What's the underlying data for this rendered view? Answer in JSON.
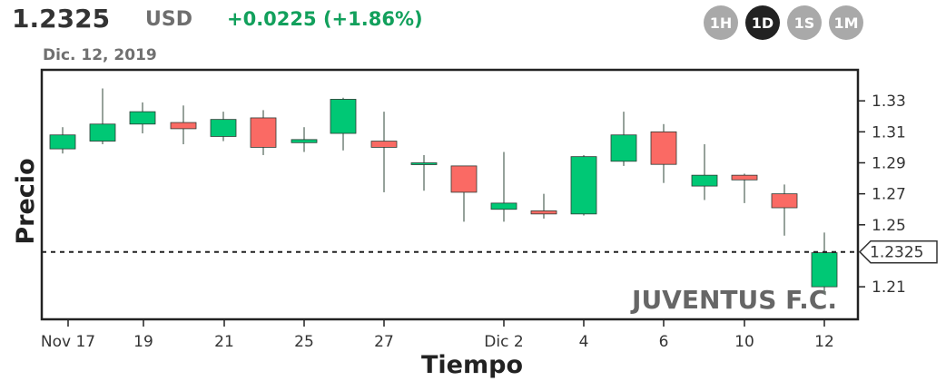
{
  "header": {
    "price": "1.2325",
    "currency": "USD",
    "change": "+0.0225 (+1.86%)",
    "change_color": "#12a05c",
    "date": "Dic. 12, 2019"
  },
  "ranges": [
    {
      "label": "1H",
      "active": false
    },
    {
      "label": "1D",
      "active": true
    },
    {
      "label": "1S",
      "active": false
    },
    {
      "label": "1M",
      "active": false
    }
  ],
  "colors": {
    "up": "#00c875",
    "down": "#fa6a64",
    "frame": "#222222"
  },
  "chart_data": {
    "type": "candlestick",
    "title": "",
    "xlabel": "Tiempo",
    "ylabel": "Precio",
    "ylim": [
      1.189,
      1.35
    ],
    "y_ticks": [
      "1.33",
      "1.31",
      "1.29",
      "1.27",
      "1.25",
      "1.21"
    ],
    "x_ticks": [
      "Nov 17",
      "19",
      "21",
      "25",
      "27",
      "Dic 2",
      "4",
      "6",
      "10",
      "12"
    ],
    "watermark": "JUVENTUS F.C.",
    "current_price": 1.2325,
    "current_price_label": "1.2325",
    "candles": [
      {
        "open": 1.299,
        "high": 1.313,
        "low": 1.296,
        "close": 1.308
      },
      {
        "open": 1.304,
        "high": 1.338,
        "low": 1.302,
        "close": 1.315
      },
      {
        "open": 1.315,
        "high": 1.329,
        "low": 1.309,
        "close": 1.323
      },
      {
        "open": 1.316,
        "high": 1.327,
        "low": 1.302,
        "close": 1.312
      },
      {
        "open": 1.307,
        "high": 1.323,
        "low": 1.304,
        "close": 1.318
      },
      {
        "open": 1.319,
        "high": 1.324,
        "low": 1.295,
        "close": 1.3
      },
      {
        "open": 1.303,
        "high": 1.313,
        "low": 1.297,
        "close": 1.305
      },
      {
        "open": 1.309,
        "high": 1.332,
        "low": 1.298,
        "close": 1.331
      },
      {
        "open": 1.304,
        "high": 1.323,
        "low": 1.271,
        "close": 1.3
      },
      {
        "open": 1.29,
        "high": 1.295,
        "low": 1.272,
        "close": 1.29
      },
      {
        "open": 1.288,
        "high": 1.288,
        "low": 1.252,
        "close": 1.271
      },
      {
        "open": 1.26,
        "high": 1.297,
        "low": 1.252,
        "close": 1.264
      },
      {
        "open": 1.259,
        "high": 1.27,
        "low": 1.254,
        "close": 1.257
      },
      {
        "open": 1.257,
        "high": 1.295,
        "low": 1.256,
        "close": 1.294
      },
      {
        "open": 1.291,
        "high": 1.323,
        "low": 1.288,
        "close": 1.308
      },
      {
        "open": 1.31,
        "high": 1.315,
        "low": 1.277,
        "close": 1.289
      },
      {
        "open": 1.275,
        "high": 1.302,
        "low": 1.266,
        "close": 1.282
      },
      {
        "open": 1.282,
        "high": 1.283,
        "low": 1.264,
        "close": 1.279
      },
      {
        "open": 1.27,
        "high": 1.276,
        "low": 1.243,
        "close": 1.261
      },
      {
        "open": 1.21,
        "high": 1.245,
        "low": 1.205,
        "close": 1.232
      }
    ]
  }
}
